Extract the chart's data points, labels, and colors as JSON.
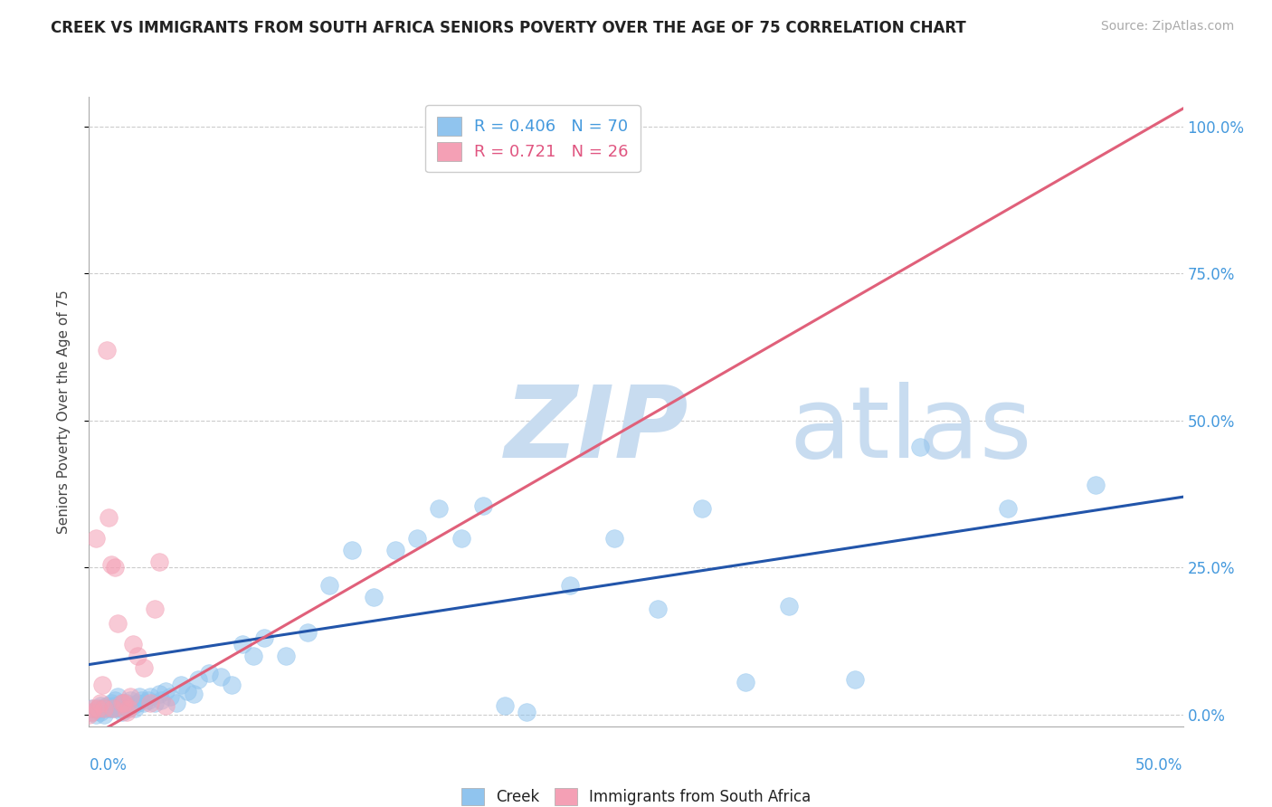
{
  "title": "CREEK VS IMMIGRANTS FROM SOUTH AFRICA SENIORS POVERTY OVER THE AGE OF 75 CORRELATION CHART",
  "source": "Source: ZipAtlas.com",
  "ylabel": "Seniors Poverty Over the Age of 75",
  "xlim": [
    0.0,
    0.5
  ],
  "ylim": [
    -0.02,
    1.05
  ],
  "creek_R": 0.406,
  "creek_N": 70,
  "sa_R": 0.721,
  "sa_N": 26,
  "creek_color": "#90C4EE",
  "sa_color": "#F4A0B5",
  "creek_line_color": "#2255AA",
  "sa_line_color": "#E0607A",
  "watermark_zip": "ZIP",
  "watermark_atlas": "atlas",
  "watermark_color": "#C8DCF0",
  "creek_line_x0": 0.0,
  "creek_line_y0": 0.085,
  "creek_line_x1": 0.5,
  "creek_line_y1": 0.37,
  "sa_line_x0": 0.0,
  "sa_line_y0": -0.04,
  "sa_line_x1": 0.5,
  "sa_line_y1": 1.03,
  "creek_x": [
    0.001,
    0.002,
    0.003,
    0.004,
    0.005,
    0.005,
    0.006,
    0.007,
    0.008,
    0.009,
    0.01,
    0.01,
    0.011,
    0.012,
    0.012,
    0.013,
    0.013,
    0.014,
    0.015,
    0.015,
    0.016,
    0.017,
    0.018,
    0.019,
    0.02,
    0.021,
    0.022,
    0.023,
    0.024,
    0.025,
    0.027,
    0.028,
    0.03,
    0.032,
    0.033,
    0.035,
    0.037,
    0.04,
    0.042,
    0.045,
    0.048,
    0.05,
    0.055,
    0.06,
    0.065,
    0.07,
    0.075,
    0.08,
    0.09,
    0.1,
    0.11,
    0.12,
    0.13,
    0.14,
    0.15,
    0.16,
    0.17,
    0.18,
    0.19,
    0.2,
    0.22,
    0.24,
    0.26,
    0.28,
    0.3,
    0.32,
    0.35,
    0.38,
    0.42,
    0.46
  ],
  "creek_y": [
    0.01,
    0.005,
    0.0,
    0.01,
    0.005,
    0.015,
    0.01,
    0.0,
    0.015,
    0.01,
    0.02,
    0.01,
    0.015,
    0.01,
    0.025,
    0.015,
    0.03,
    0.01,
    0.02,
    0.005,
    0.015,
    0.02,
    0.01,
    0.025,
    0.015,
    0.01,
    0.02,
    0.03,
    0.025,
    0.02,
    0.025,
    0.03,
    0.02,
    0.035,
    0.025,
    0.04,
    0.03,
    0.02,
    0.05,
    0.04,
    0.035,
    0.06,
    0.07,
    0.065,
    0.05,
    0.12,
    0.1,
    0.13,
    0.1,
    0.14,
    0.22,
    0.28,
    0.2,
    0.28,
    0.3,
    0.35,
    0.3,
    0.355,
    0.015,
    0.005,
    0.22,
    0.3,
    0.18,
    0.35,
    0.055,
    0.185,
    0.06,
    0.455,
    0.35,
    0.39
  ],
  "sa_x": [
    0.0,
    0.001,
    0.002,
    0.003,
    0.004,
    0.005,
    0.006,
    0.007,
    0.008,
    0.009,
    0.01,
    0.011,
    0.012,
    0.013,
    0.015,
    0.016,
    0.017,
    0.018,
    0.019,
    0.02,
    0.022,
    0.025,
    0.028,
    0.03,
    0.032,
    0.035
  ],
  "sa_y": [
    0.0,
    0.005,
    0.01,
    0.3,
    0.01,
    0.02,
    0.05,
    0.01,
    0.62,
    0.335,
    0.255,
    0.01,
    0.25,
    0.155,
    0.02,
    0.02,
    0.005,
    0.01,
    0.03,
    0.12,
    0.1,
    0.08,
    0.02,
    0.18,
    0.26,
    0.015
  ]
}
